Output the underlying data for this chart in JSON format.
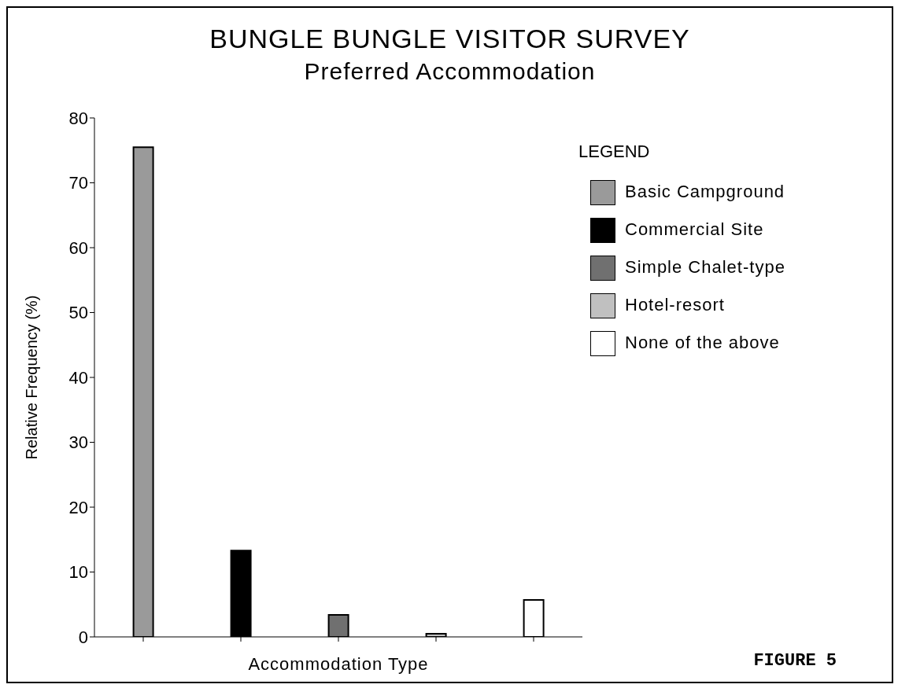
{
  "chart_data": {
    "type": "bar",
    "title": "BUNGLE BUNGLE VISITOR SURVEY",
    "subtitle": "Preferred Accommodation",
    "xlabel": "Accommodation Type",
    "ylabel": "Relative Frequency (%)",
    "legend_title": "LEGEND",
    "annotations": [
      "FIGURE 5"
    ],
    "categories": [
      null,
      null,
      null,
      null,
      null
    ],
    "stacked": true,
    "series": [
      {
        "name": "Basic Campground",
        "color": "#9a9a9a",
        "values": [
          75.5,
          null,
          null,
          null,
          null
        ]
      },
      {
        "name": "Commercial Site",
        "color": "#000000",
        "values": [
          null,
          13.3,
          null,
          null,
          null
        ]
      },
      {
        "name": "Simple Chalet-type",
        "color": "#707070",
        "values": [
          null,
          null,
          3.4,
          null,
          null
        ]
      },
      {
        "name": "Hotel-resort",
        "color": "#c0c0c0",
        "values": [
          null,
          null,
          null,
          0.5,
          null
        ]
      },
      {
        "name": "None of the above",
        "color": "#ffffff",
        "values": [
          null,
          null,
          null,
          null,
          5.7
        ]
      }
    ],
    "ylim": [
      0,
      80
    ],
    "yticks": [
      0,
      10,
      20,
      30,
      40,
      50,
      60,
      70,
      80
    ],
    "legend": "right"
  }
}
